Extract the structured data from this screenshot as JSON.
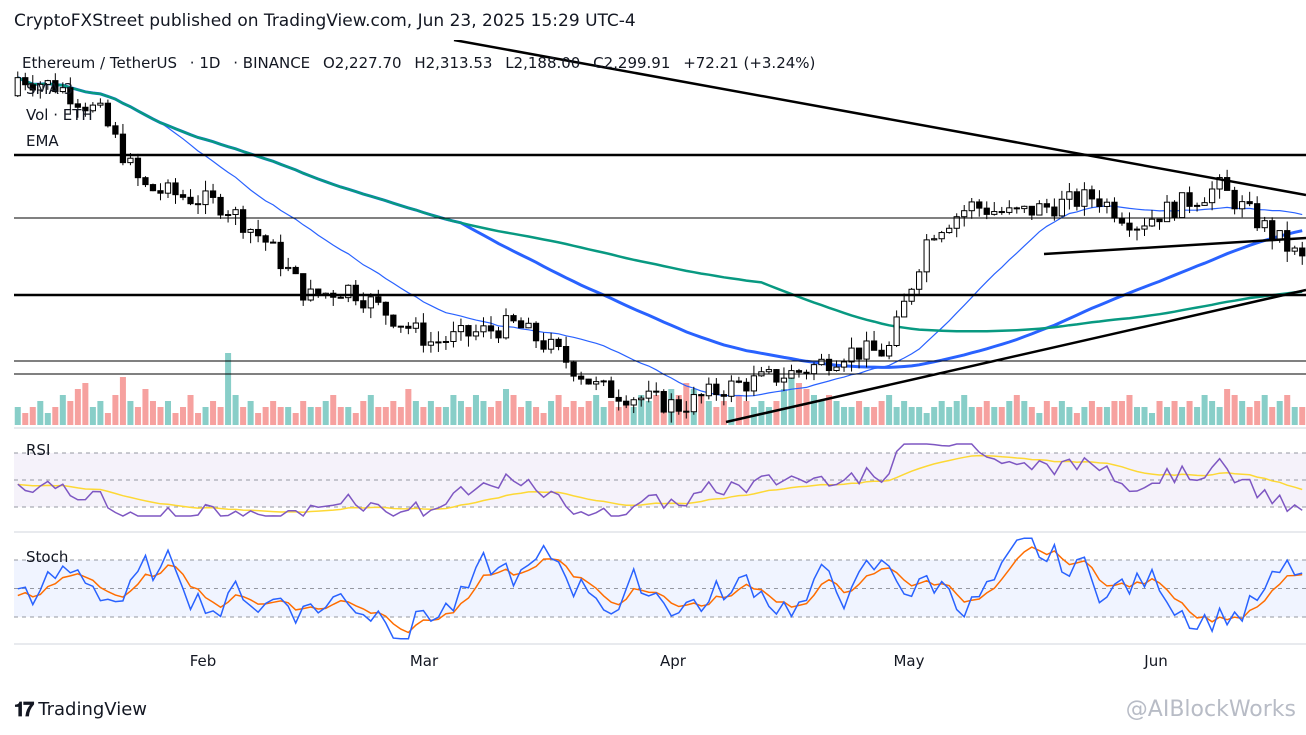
{
  "header": {
    "published_line": "CryptoFXStreet published on TradingView.com, Jun 23, 2025 15:29 UTC-4"
  },
  "legend": {
    "symbol": "Ethereum / TetherUS",
    "interval": "1D",
    "exchange": "BINANCE",
    "open": "O2,227.70",
    "high": "H2,313.53",
    "low": "L2,188.00",
    "close": "C2,299.91",
    "change": "+72.21 (+3.24%)",
    "sma_label": "SMA 3",
    "vol_label": "Vol · ETH",
    "ema_label": "EMA"
  },
  "panes": {
    "rsi_label": "RSI",
    "stoch_label": "Stoch"
  },
  "footer": {
    "brand": "TradingView",
    "watermark": "@AIBlockWorks"
  },
  "colors": {
    "up": "#26a69a",
    "down": "#ef5350",
    "sma_blue": "#2962ff",
    "ema_green": "#089981",
    "rsi_line": "#7e57c2",
    "rsi_ma": "#fdd835",
    "stoch_k": "#2962ff",
    "stoch_d": "#ff6d00"
  },
  "chart_data": {
    "type": "candlestick",
    "x_ticks": [
      "Feb",
      "Mar",
      "Apr",
      "May",
      "Jun"
    ],
    "price": {
      "start": 3200,
      "trend": [
        3300,
        3250,
        3100,
        2700,
        2650,
        2600,
        2400,
        2100,
        2150,
        2000,
        1850,
        1900,
        1950,
        1800,
        1600,
        1550,
        1500,
        1600,
        1650,
        1700,
        1800,
        1800,
        2450,
        2600,
        2550,
        2600,
        2650,
        2500,
        2600,
        2700,
        2500,
        2300
      ]
    },
    "volume": [
      3,
      2,
      3,
      4,
      2,
      3,
      5,
      4,
      6,
      7,
      3,
      4,
      2,
      5,
      8,
      4,
      3,
      6,
      4,
      3,
      4,
      2,
      3,
      5,
      2,
      3,
      4,
      3,
      12,
      5,
      3,
      4,
      2,
      3,
      4,
      3,
      3,
      2,
      4,
      3,
      3,
      4,
      5,
      3,
      3,
      2,
      4,
      5,
      3,
      3,
      4,
      3,
      6,
      4,
      3,
      4,
      3,
      3,
      5,
      4,
      3,
      5,
      4,
      3,
      4,
      6,
      5,
      3,
      4,
      3,
      2,
      4,
      5,
      3,
      4,
      3,
      4,
      5,
      3,
      4,
      3,
      4,
      3,
      5,
      4,
      5,
      3,
      6,
      5,
      7,
      6,
      5,
      4,
      3,
      4,
      3,
      5,
      4,
      3,
      4,
      3,
      4,
      6,
      9,
      7,
      6,
      5,
      4,
      5,
      4,
      3,
      3,
      4,
      3,
      3,
      4,
      5,
      3,
      4,
      3,
      3,
      2,
      3,
      4,
      3,
      4,
      5,
      3,
      3,
      4,
      3,
      3,
      4,
      5,
      4,
      3,
      2,
      4,
      3,
      4,
      3,
      2,
      3,
      4,
      3,
      3,
      4,
      4,
      5,
      3,
      3,
      2,
      4,
      3,
      4,
      3,
      4,
      3,
      5,
      4,
      3,
      6,
      5,
      4,
      3,
      4,
      5,
      3,
      4,
      5,
      3,
      3
    ],
    "rsi_range": [
      0,
      100
    ],
    "stoch_range": [
      0,
      100
    ],
    "rsi_levels": [
      70,
      50,
      30
    ],
    "stoch_levels": [
      80,
      50,
      20
    ]
  }
}
